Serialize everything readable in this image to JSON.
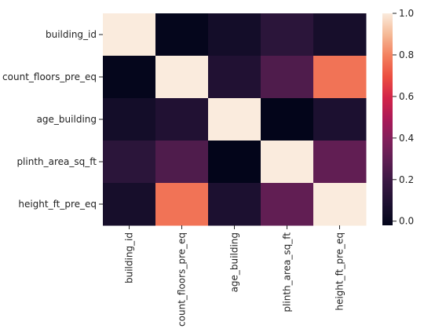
{
  "chart_data": {
    "type": "heatmap",
    "title": "",
    "xlabel": "",
    "ylabel": "",
    "rows": [
      "building_id",
      "count_floors_pre_eq",
      "age_building",
      "plinth_area_sq_ft",
      "height_ft_pre_eq"
    ],
    "columns": [
      "building_id",
      "count_floors_pre_eq",
      "age_building",
      "plinth_area_sq_ft",
      "height_ft_pre_eq"
    ],
    "values": [
      [
        1.0,
        -0.01,
        0.05,
        0.14,
        0.06
      ],
      [
        -0.01,
        1.0,
        0.1,
        0.25,
        0.77
      ],
      [
        0.05,
        0.1,
        1.0,
        -0.02,
        0.08
      ],
      [
        0.14,
        0.25,
        -0.02,
        1.0,
        0.3
      ],
      [
        0.06,
        0.77,
        0.08,
        0.3,
        1.0
      ]
    ],
    "colorbar": {
      "range": [
        -0.02,
        1.0
      ],
      "ticks": [
        "0.0",
        "0.2",
        "0.4",
        "0.6",
        "0.8",
        "1.0"
      ],
      "colormap": "rocket"
    }
  }
}
